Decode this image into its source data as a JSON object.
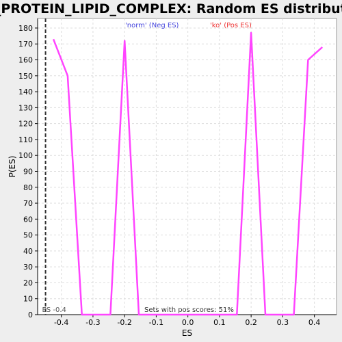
{
  "chart_data": {
    "type": "line",
    "title": "GO_PROTEIN_LIPID_COMPLEX: Random ES distribution",
    "xlabel": "ES",
    "ylabel": "P(ES)",
    "xlim": [
      -0.475,
      0.47
    ],
    "ylim": [
      0,
      186
    ],
    "x_ticks": [
      -0.4,
      -0.3,
      -0.2,
      -0.1,
      0.0,
      0.1,
      0.2,
      0.3,
      0.4
    ],
    "x_tick_labels": [
      "-0.4",
      "-0.3",
      "-0.2",
      "-0.1",
      "0.0",
      "0.1",
      "0.2",
      "0.3",
      "0.4"
    ],
    "y_ticks": [
      0,
      10,
      20,
      30,
      40,
      50,
      60,
      70,
      80,
      90,
      100,
      110,
      120,
      130,
      140,
      150,
      160,
      170,
      180
    ],
    "grid": true,
    "series": [
      {
        "color": "#ff44ff",
        "x": [
          -0.425,
          -0.38,
          -0.335,
          -0.245,
          -0.2,
          -0.155,
          0.155,
          0.2,
          0.245,
          0.335,
          0.38,
          0.425
        ],
        "y": [
          173,
          150,
          0,
          0,
          172,
          0,
          0,
          177,
          0,
          0,
          160,
          168
        ]
      }
    ],
    "observed_es": {
      "x": -0.45,
      "label": "ES -0.4"
    },
    "annotations": {
      "neg_label": "'norm' (Neg ES)",
      "pos_label": "'ko' (Pos ES)",
      "pos_scores": "Sets with pos scores: 51%"
    },
    "colors": {
      "neg_label": "#4444dd",
      "pos_label": "#ee3333",
      "line": "#ff44ff",
      "background": "#ffffff",
      "page": "#eeeeee"
    }
  }
}
